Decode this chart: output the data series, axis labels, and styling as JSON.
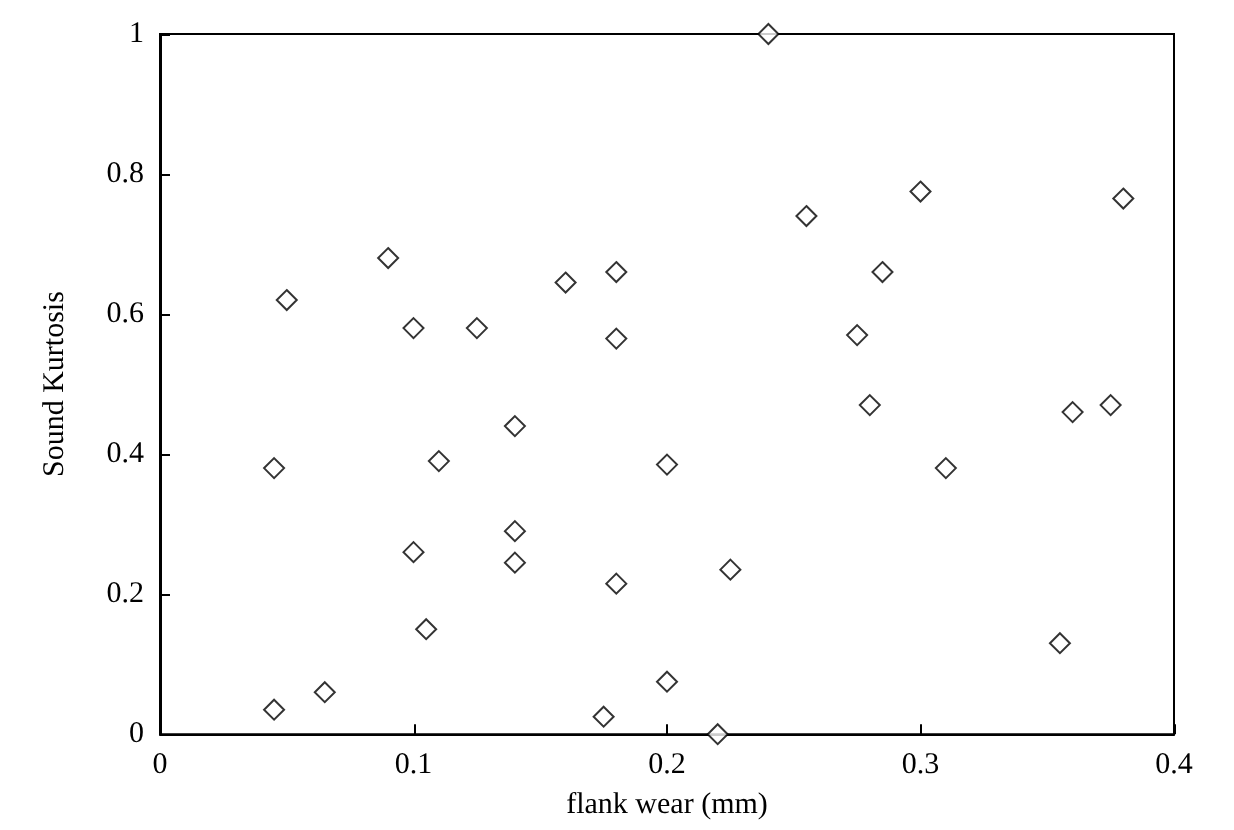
{
  "chart_data": {
    "type": "scatter",
    "xlabel": "flank wear (mm)",
    "ylabel": "Sound Kurtosis",
    "marker": "diamond",
    "xlim": [
      0,
      0.4
    ],
    "xticks": [
      0,
      0.1,
      0.2,
      0.3,
      0.4
    ],
    "ylim": [
      0,
      1
    ],
    "yticks": [
      0,
      0.2,
      0.4,
      0.6,
      0.8,
      1
    ],
    "series": [
      {
        "color": "#000000",
        "x": [
          0.05,
          0.045,
          0.045,
          0.065,
          0.09,
          0.1,
          0.1,
          0.105,
          0.11,
          0.125,
          0.14,
          0.14,
          0.14,
          0.16,
          0.18,
          0.18,
          0.18,
          0.175,
          0.2,
          0.2,
          0.22,
          0.225,
          0.24,
          0.255,
          0.285,
          0.275,
          0.28,
          0.3,
          0.31,
          0.355,
          0.36,
          0.375,
          0.38
        ],
        "values": [
          0.62,
          0.035,
          0.38,
          0.06,
          0.68,
          0.58,
          0.26,
          0.15,
          0.39,
          0.58,
          0.44,
          0.29,
          0.245,
          0.645,
          0.66,
          0.565,
          0.215,
          0.025,
          0.385,
          0.075,
          0,
          0.235,
          1,
          0.74,
          0.66,
          0.57,
          0.47,
          0.775,
          0.38,
          0.13,
          0.46,
          0.47,
          0.765
        ]
      }
    ]
  }
}
